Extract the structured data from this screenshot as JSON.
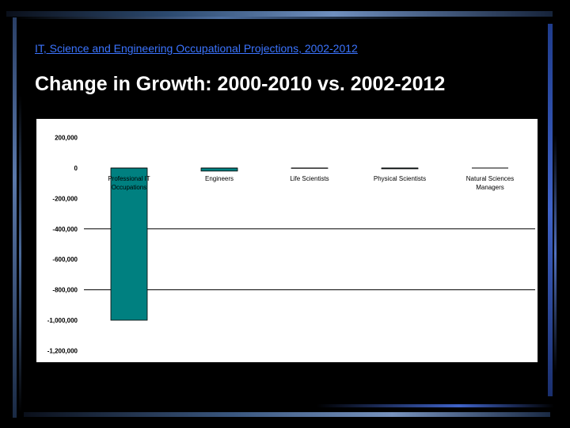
{
  "header": {
    "subtitle": "IT, Science and Engineering Occupational Projections, 2002-2012",
    "title": "Change in Growth: 2000-2010 vs. 2002-2012"
  },
  "colors": {
    "bar": "#008080",
    "subtitle": "#3b74ff",
    "title": "#ffffff"
  },
  "chart_data": {
    "type": "bar",
    "categories": [
      [
        "Professional IT",
        "Occupations"
      ],
      [
        "Engineers"
      ],
      [
        "Life Scientists"
      ],
      [
        "Physical Scientists"
      ],
      [
        "Natural Sciences",
        "Managers"
      ]
    ],
    "values": [
      -1000000,
      -20000,
      -2000,
      -5000,
      0
    ],
    "ylim": [
      -1200000,
      200000
    ],
    "ytick_values": [
      200000,
      0,
      -200000,
      -400000,
      -600000,
      -800000,
      -1000000,
      -1200000
    ],
    "ytick_labels": [
      "200,000",
      "0",
      "-200,000",
      "-400,000",
      "-600,000",
      "-800,000",
      "-1,000,000",
      "-1,200,000"
    ],
    "gridlines": [
      -400000,
      -800000
    ],
    "xlabel": "",
    "ylabel": "",
    "legend": "none"
  }
}
